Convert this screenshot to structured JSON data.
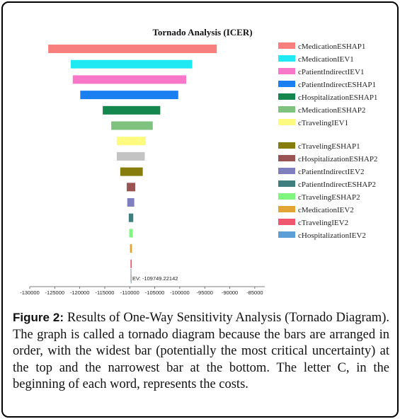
{
  "figure": {
    "label": "Figure 2:",
    "caption": "Results of One-Way Sensitivity Analysis (Tornado Diagram). The graph is called a tornado diagram because the bars are arranged in order, with the widest bar (potentially the most critical uncertainty) at the top and the narrowest bar at the bottom. The letter C, in the beginning of each word, represents the costs."
  },
  "chart_data": {
    "type": "bar",
    "orientation": "horizontal",
    "title": "Tornado Analysis (ICER)",
    "xlim": [
      -130000,
      -83000
    ],
    "x_ticks": [
      "-130000",
      "-125000",
      "-120000",
      "-115000",
      "-110000",
      "-105000",
      "-100000",
      "-95000",
      "-90000",
      "-85000"
    ],
    "base_value": -109749.22142,
    "base_label": "EV: -109749.22142",
    "legend_position": "right",
    "series": [
      {
        "name": "cMedicationESHAP1",
        "low": -126300,
        "high": -92600,
        "color": "#f7807f"
      },
      {
        "name": "cMedicationIEV1",
        "low": -121800,
        "high": -97500,
        "color": "#1fe9f2"
      },
      {
        "name": "cPatientIndirectIEV1",
        "low": -121400,
        "high": -98700,
        "color": "#f977c8"
      },
      {
        "name": "cPatientIndirectESHAP1",
        "low": -119900,
        "high": -100300,
        "color": "#1a7ff0"
      },
      {
        "name": "cHospitalizationESHAP1",
        "low": -115400,
        "high": -103900,
        "color": "#13874e"
      },
      {
        "name": "cMedicationESHAP2",
        "low": -113700,
        "high": -105400,
        "color": "#7fc27f"
      },
      {
        "name": "cTravelingIEV1",
        "low": -112600,
        "high": -106800,
        "color": "#fdfb7f"
      },
      {
        "name": "cTravelingESHAP1",
        "low": -112600,
        "high": -107000,
        "color": "#c3c3c3",
        "legend": false
      },
      {
        "name": "cTravelingESHAP1",
        "low": -111900,
        "high": -107400,
        "color": "#877d0d"
      },
      {
        "name": "cHospitalizationESHAP2",
        "low": -110600,
        "high": -108900,
        "color": "#9a5353"
      },
      {
        "name": "cPatientIndirectIEV2",
        "low": -110500,
        "high": -109100,
        "color": "#7f7fbf"
      },
      {
        "name": "cPatientIndirectESHAP2",
        "low": -110200,
        "high": -109300,
        "color": "#3f7f7f"
      },
      {
        "name": "cTravelingESHAP2",
        "low": -110100,
        "high": -109400,
        "color": "#7ff77f"
      },
      {
        "name": "cMedicationIEV2",
        "low": -109950,
        "high": -109550,
        "color": "#e3a436"
      },
      {
        "name": "cTravelingIEV2",
        "low": -109850,
        "high": -109600,
        "color": "#f0576f"
      },
      {
        "name": "cHospitalizationIEV2",
        "low": -109800,
        "high": -109700,
        "color": "#5c9fd6"
      }
    ]
  }
}
